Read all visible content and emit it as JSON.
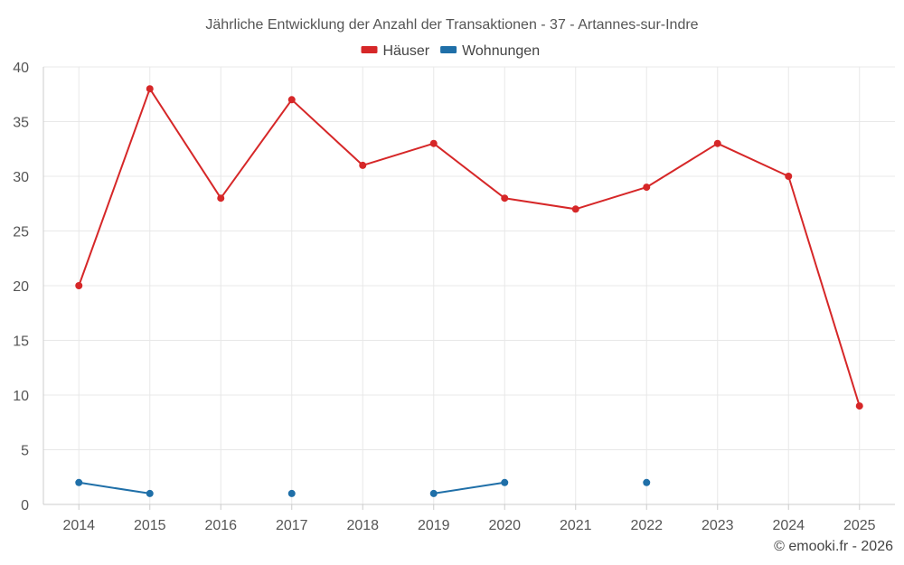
{
  "chart_data": {
    "type": "line",
    "title": "Jährliche Entwicklung der Anzahl der Transaktionen - 37 - Artannes-sur-Indre",
    "x": [
      "2014",
      "2015",
      "2016",
      "2017",
      "2018",
      "2019",
      "2020",
      "2021",
      "2022",
      "2023",
      "2024",
      "2025"
    ],
    "ylim": [
      0,
      40
    ],
    "yticks": [
      0,
      5,
      10,
      15,
      20,
      25,
      30,
      35,
      40
    ],
    "grid": true,
    "legend_position": "top-center",
    "series": [
      {
        "name": "Häuser",
        "color": "#d62728",
        "values": [
          20,
          38,
          28,
          37,
          31,
          33,
          28,
          27,
          29,
          33,
          30,
          9
        ]
      },
      {
        "name": "Wohnungen",
        "color": "#1f6fa8",
        "values": [
          2,
          1,
          null,
          1,
          null,
          1,
          2,
          null,
          2,
          null,
          null,
          null
        ]
      }
    ]
  },
  "credit": "© emooki.fr - 2026"
}
